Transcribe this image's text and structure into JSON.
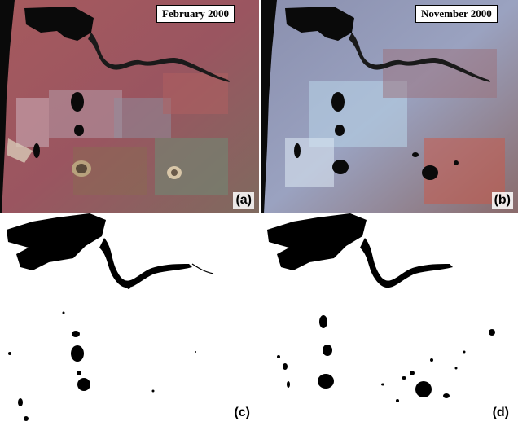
{
  "panels": [
    {
      "id": "a",
      "date": "February 2000",
      "label": "(a)"
    },
    {
      "id": "b",
      "date": "November 2000",
      "label": "(b)"
    },
    {
      "id": "c",
      "label": "(c)"
    },
    {
      "id": "d",
      "label": "(d)"
    }
  ]
}
